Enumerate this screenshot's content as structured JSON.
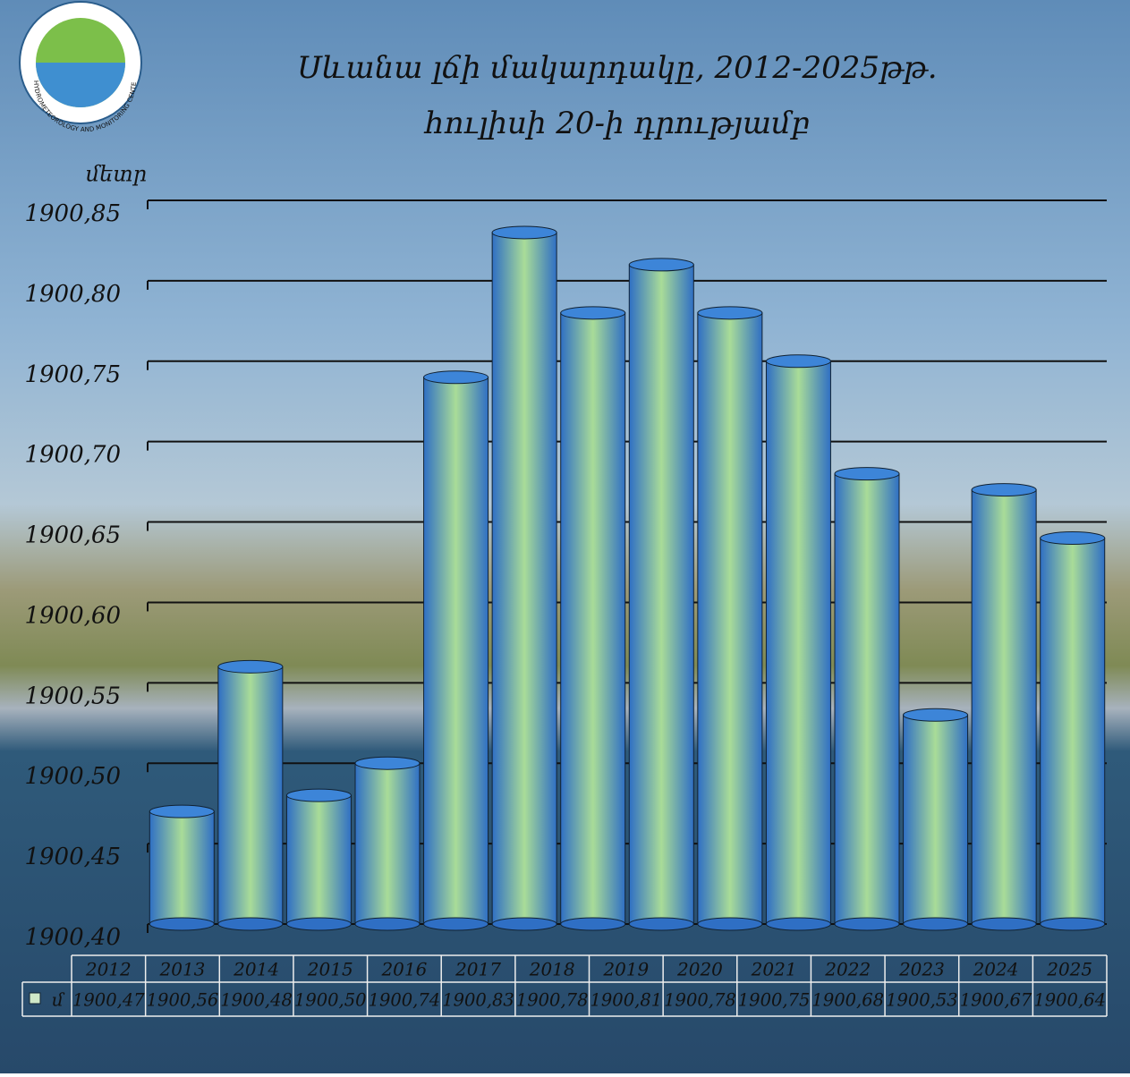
{
  "chart_data": {
    "type": "bar",
    "title": "Սևանա լճի մակարդակը, 2012-2025թթ.",
    "subtitle": "հուլիսի 20-ի դրությամբ",
    "y_axis_label": "մետր",
    "logo_text": "HYDROMETEOROLOGY AND MONITORING CENTER",
    "categories": [
      "2012",
      "2013",
      "2014",
      "2015",
      "2016",
      "2017",
      "2018",
      "2019",
      "2020",
      "2021",
      "2022",
      "2023",
      "2024",
      "2025"
    ],
    "series": [
      {
        "name": "մ",
        "color": "#3d85d8",
        "values": [
          1900.47,
          1900.56,
          1900.48,
          1900.5,
          1900.74,
          1900.83,
          1900.78,
          1900.81,
          1900.78,
          1900.75,
          1900.68,
          1900.53,
          1900.67,
          1900.64
        ],
        "value_labels": [
          "1900,47",
          "1900,56",
          "1900,48",
          "1900,50",
          "1900,74",
          "1900,83",
          "1900,78",
          "1900,81",
          "1900,78",
          "1900,75",
          "1900,68",
          "1900,53",
          "1900,67",
          "1900,64"
        ]
      }
    ],
    "ylim": [
      1900.4,
      1900.85
    ],
    "yticks": [
      {
        "value": 1900.4,
        "label": "1900,40"
      },
      {
        "value": 1900.45,
        "label": "1900,45"
      },
      {
        "value": 1900.5,
        "label": "1900,50"
      },
      {
        "value": 1900.55,
        "label": "1900,55"
      },
      {
        "value": 1900.6,
        "label": "1900,60"
      },
      {
        "value": 1900.65,
        "label": "1900,65"
      },
      {
        "value": 1900.7,
        "label": "1900,70"
      },
      {
        "value": 1900.75,
        "label": "1900,75"
      },
      {
        "value": 1900.8,
        "label": "1900,80"
      },
      {
        "value": 1900.85,
        "label": "1900,85"
      }
    ],
    "grid": true,
    "data_table": true
  }
}
